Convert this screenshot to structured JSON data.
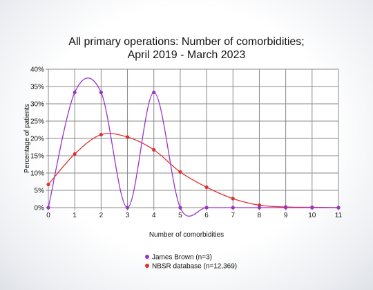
{
  "chart_data": {
    "type": "line",
    "title_lines": [
      "All primary operations: Number of comorbidities;",
      "April 2019 - March 2023"
    ],
    "xlabel": "Number of comorbidities",
    "ylabel": "Percentage of patients",
    "x": [
      0,
      1,
      2,
      3,
      4,
      5,
      6,
      7,
      8,
      9,
      10,
      11
    ],
    "x_tick_labels": [
      "0",
      "1",
      "2",
      "3",
      "4",
      "5",
      "6",
      "7",
      "8",
      "9",
      "10",
      "11"
    ],
    "y_tick_labels": [
      "0%",
      "5%",
      "10%",
      "15%",
      "20%",
      "25%",
      "30%",
      "35%",
      "40%"
    ],
    "xlim": [
      0,
      11
    ],
    "ylim": [
      0,
      40
    ],
    "grid": true,
    "legend_position": "bottom-center",
    "series": [
      {
        "name": "James Brown (n=3)",
        "color": "#9933cc",
        "values": [
          0,
          33.3,
          33.3,
          0,
          33.3,
          0,
          0,
          0,
          0,
          0,
          0,
          0
        ]
      },
      {
        "name": "NBSR database (n=12,369)",
        "color": "#e03030",
        "values": [
          6.7,
          15.5,
          21.1,
          20.4,
          16.7,
          10.3,
          5.9,
          2.6,
          0.7,
          0.2,
          0.1,
          0
        ]
      }
    ]
  }
}
